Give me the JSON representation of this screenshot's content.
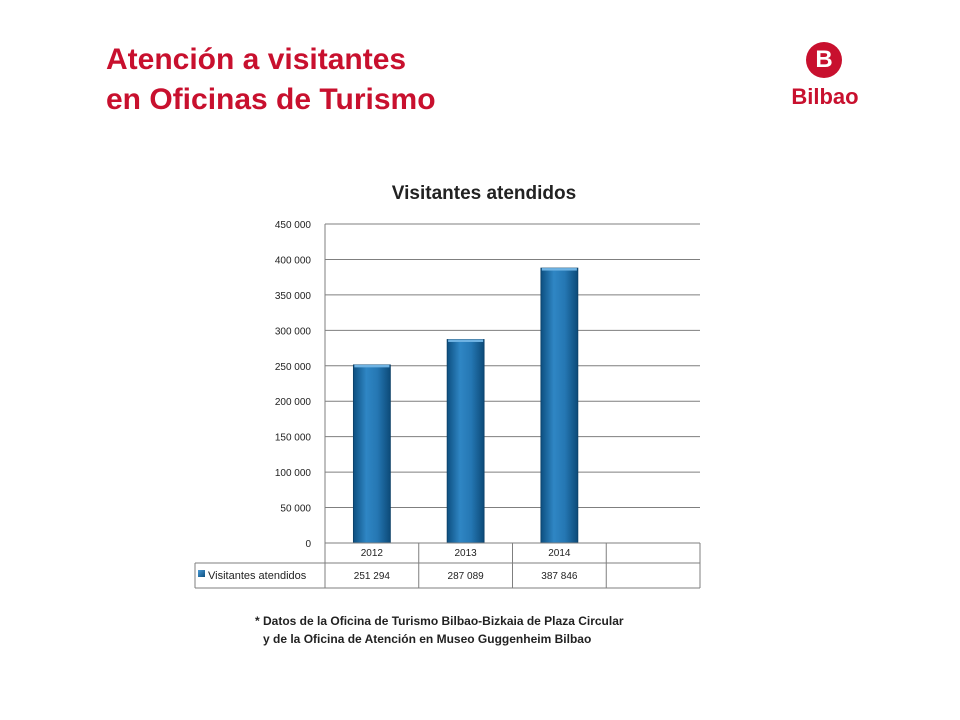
{
  "header": {
    "title_line1": "Atención a visitantes",
    "title_line2": "en Oficinas de Turismo"
  },
  "logo": {
    "letter": "B",
    "name": "Bilbao"
  },
  "colors": {
    "accent": "#c8102e",
    "bar": "#1f6fa8",
    "grid": "#7f7f7f"
  },
  "chart_data": {
    "type": "bar",
    "title": "Visitantes atendidos",
    "categories": [
      "2012",
      "2013",
      "2014"
    ],
    "series": [
      {
        "name": "Visitantes atendidos",
        "values": [
          251294,
          287089,
          387846
        ]
      }
    ],
    "value_labels": [
      "251 294",
      "287 089",
      "387 846"
    ],
    "ylim": [
      0,
      450000
    ],
    "yticks": [
      0,
      50000,
      100000,
      150000,
      200000,
      250000,
      300000,
      350000,
      400000,
      450000
    ],
    "ytick_labels": [
      "0",
      "50 000",
      "100 000",
      "150 000",
      "200 000",
      "250 000",
      "300 000",
      "350 000",
      "400 000",
      "450 000"
    ],
    "grid": true,
    "legend": "bottom-left data table"
  },
  "footnote": {
    "line1": "* Datos de la Oficina de Turismo Bilbao-Bizkaia de Plaza Circular",
    "line2": "y de la Oficina de Atención en Museo Guggenheim Bilbao"
  }
}
